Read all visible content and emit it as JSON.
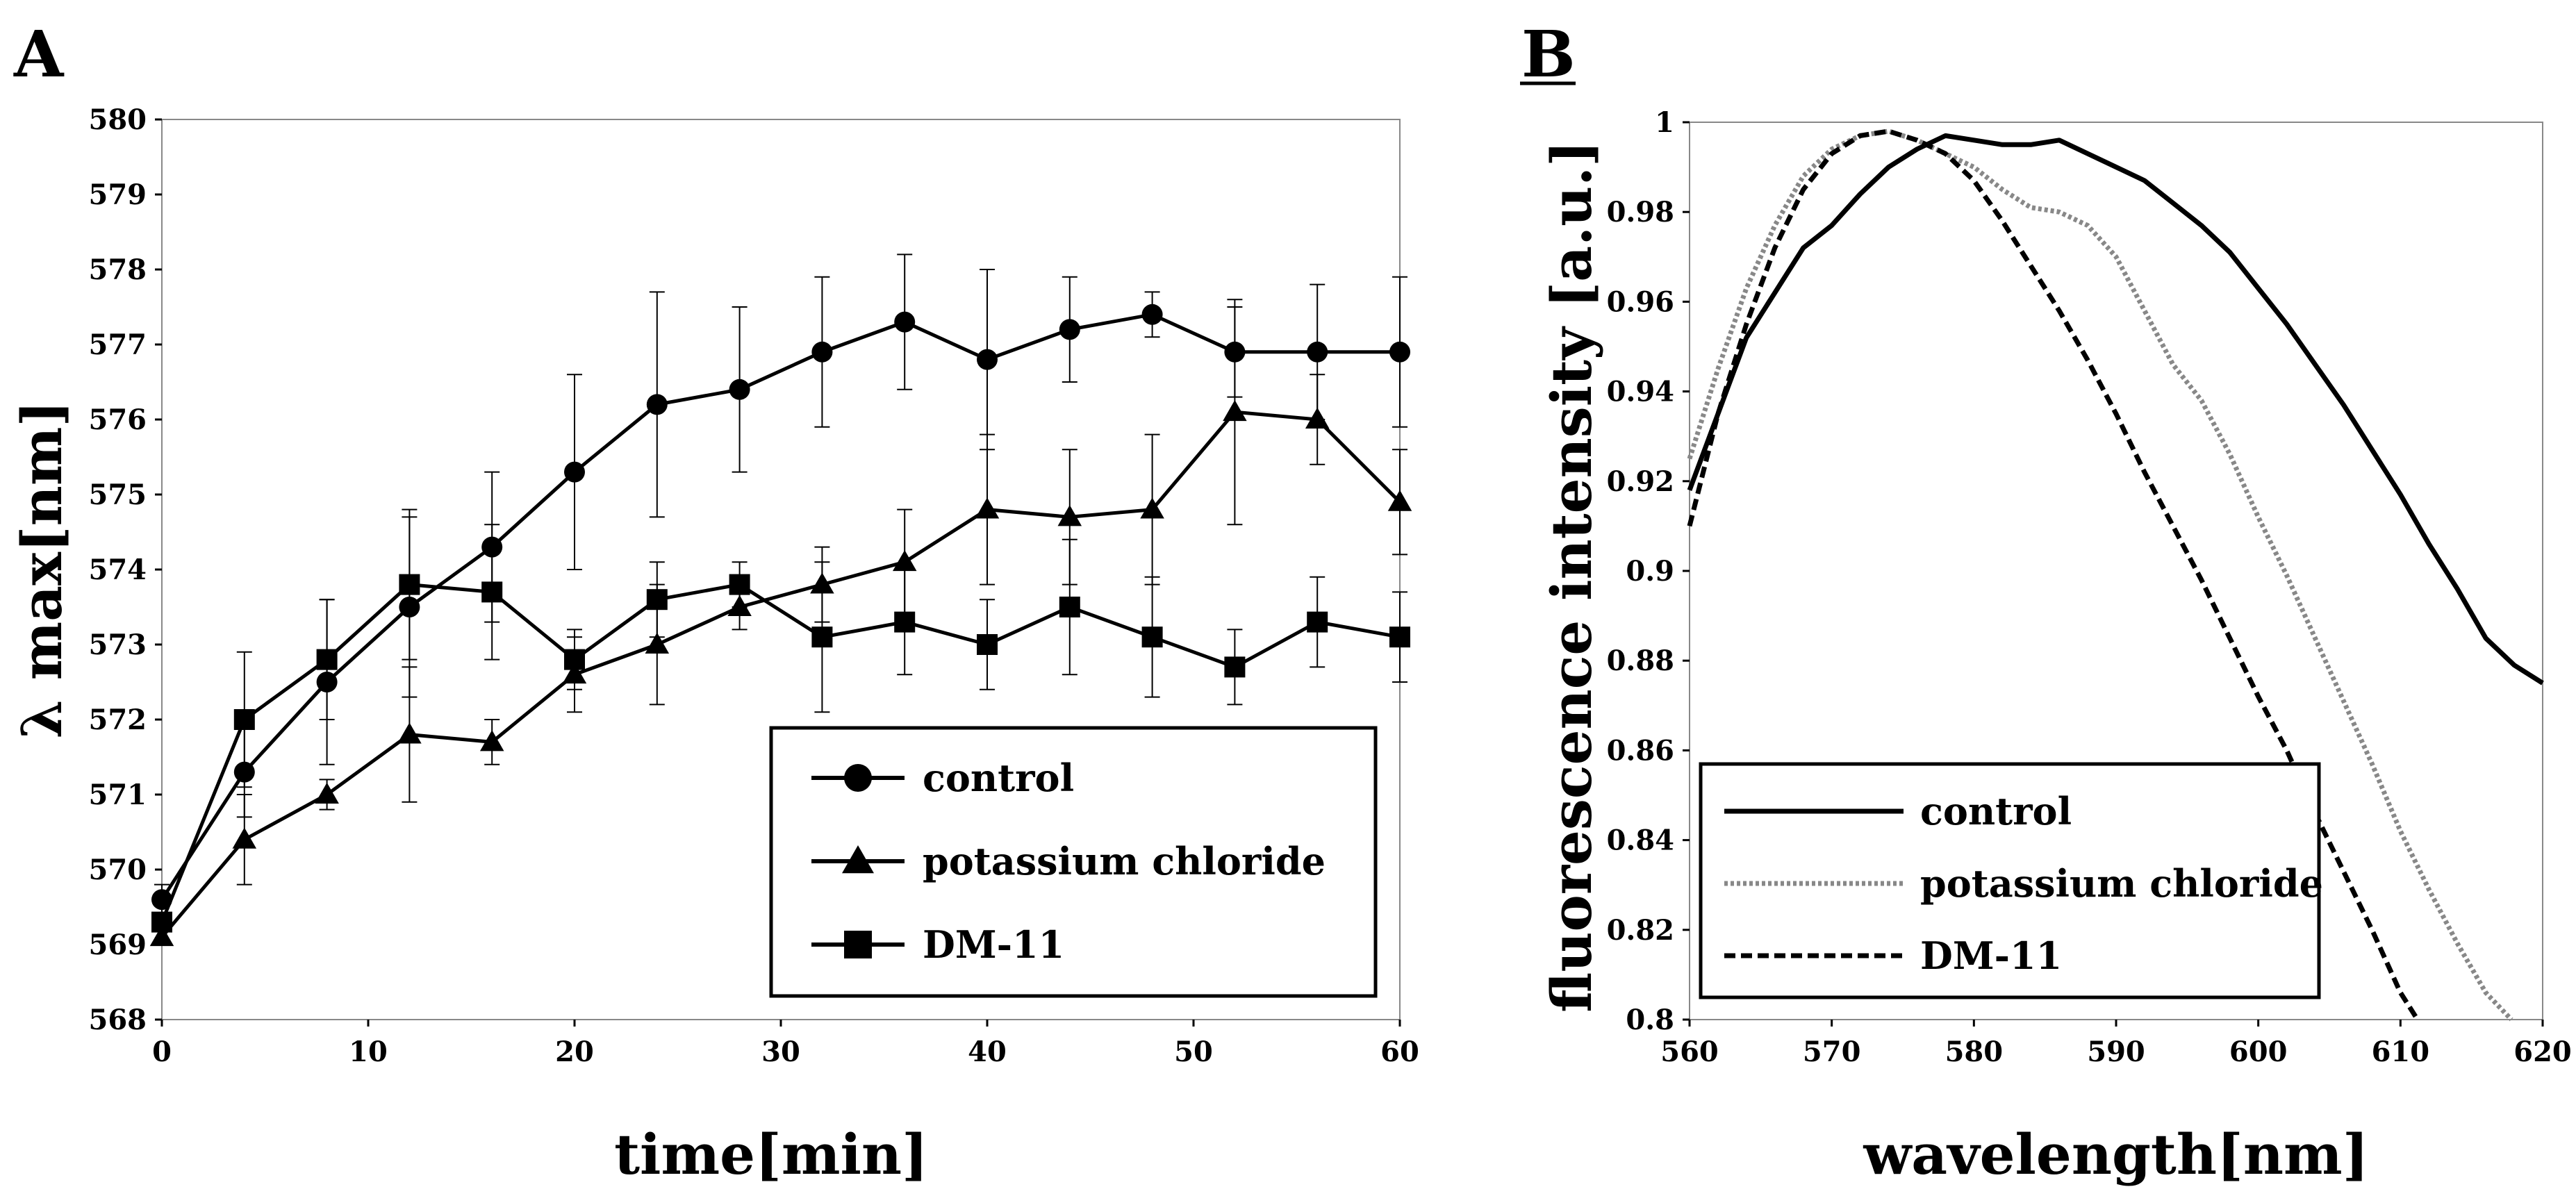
{
  "chart_data": [
    {
      "panel": "A",
      "type": "line",
      "xlabel": "time[min]",
      "ylabel": "λ max[nm]",
      "xlim": [
        0,
        60
      ],
      "ylim": [
        568,
        580
      ],
      "xticks": [
        0,
        10,
        20,
        30,
        40,
        50,
        60
      ],
      "yticks": [
        568,
        569,
        570,
        571,
        572,
        573,
        574,
        575,
        576,
        577,
        578,
        579,
        580
      ],
      "error_bars": true,
      "legend_position": "bottom-right",
      "x": [
        0,
        4,
        8,
        12,
        16,
        20,
        24,
        28,
        32,
        36,
        40,
        44,
        48,
        52,
        56,
        60
      ],
      "series": [
        {
          "name": "control",
          "marker": "circle",
          "values": [
            569.6,
            571.3,
            572.5,
            573.5,
            574.3,
            575.3,
            576.2,
            576.4,
            576.9,
            577.3,
            576.8,
            577.2,
            577.4,
            576.9,
            576.9,
            576.9
          ],
          "errors": [
            0.2,
            0.6,
            1.1,
            1.2,
            1.0,
            1.3,
            1.5,
            1.1,
            1.0,
            0.9,
            1.2,
            0.7,
            0.3,
            0.6,
            0.9,
            1.0
          ]
        },
        {
          "name": "potassium chloride",
          "marker": "triangle",
          "values": [
            569.1,
            570.4,
            571.0,
            571.8,
            571.7,
            572.6,
            573.0,
            573.5,
            573.8,
            574.1,
            574.8,
            574.7,
            574.8,
            576.1,
            576.0,
            574.9
          ],
          "errors": [
            0.1,
            0.6,
            0.2,
            0.9,
            0.3,
            0.5,
            0.8,
            0.3,
            0.5,
            0.7,
            1.0,
            0.9,
            1.0,
            1.5,
            0.6,
            0.7
          ]
        },
        {
          "name": "DM-11",
          "marker": "square",
          "values": [
            569.3,
            572.0,
            572.8,
            573.8,
            573.7,
            572.8,
            573.6,
            573.8,
            573.1,
            573.3,
            573.0,
            573.5,
            573.1,
            572.7,
            573.3,
            573.1
          ],
          "errors": [
            0.1,
            0.9,
            0.8,
            1.0,
            0.9,
            0.4,
            0.5,
            0.3,
            1.0,
            0.7,
            0.6,
            0.9,
            0.8,
            0.5,
            0.6,
            0.6
          ]
        }
      ]
    },
    {
      "panel": "B",
      "type": "line",
      "xlabel": "wavelength[nm]",
      "ylabel": "fluorescence intensity [a.u.]",
      "xlim": [
        560,
        620
      ],
      "ylim": [
        0.8,
        1
      ],
      "xticks": [
        560,
        570,
        580,
        590,
        600,
        610,
        620
      ],
      "yticks": [
        0.8,
        0.82,
        0.84,
        0.86,
        0.88,
        0.9,
        0.92,
        0.94,
        0.96,
        0.98,
        1
      ],
      "legend_position": "bottom-left",
      "series": [
        {
          "name": "control",
          "style": "solid",
          "x": [
            560,
            562,
            564,
            566,
            568,
            570,
            572,
            574,
            576,
            578,
            580,
            582,
            584,
            586,
            588,
            590,
            592,
            594,
            596,
            598,
            600,
            602,
            604,
            606,
            608,
            610,
            612,
            614,
            616,
            618,
            620
          ],
          "values": [
            0.918,
            0.935,
            0.952,
            0.962,
            0.972,
            0.977,
            0.984,
            0.99,
            0.994,
            0.997,
            0.996,
            0.995,
            0.995,
            0.996,
            0.993,
            0.99,
            0.987,
            0.982,
            0.977,
            0.971,
            0.963,
            0.955,
            0.946,
            0.937,
            0.927,
            0.917,
            0.906,
            0.896,
            0.885,
            0.879,
            0.875
          ]
        },
        {
          "name": "potassium chloride",
          "style": "dotted",
          "x": [
            560,
            562,
            564,
            566,
            568,
            570,
            572,
            574,
            576,
            578,
            580,
            582,
            584,
            586,
            588,
            590,
            592,
            594,
            596,
            598,
            600,
            602,
            604,
            606,
            608,
            610,
            612,
            614,
            616,
            617.8
          ],
          "values": [
            0.925,
            0.945,
            0.963,
            0.977,
            0.988,
            0.994,
            0.997,
            0.998,
            0.996,
            0.993,
            0.99,
            0.985,
            0.981,
            0.98,
            0.977,
            0.97,
            0.958,
            0.946,
            0.938,
            0.926,
            0.912,
            0.899,
            0.885,
            0.871,
            0.857,
            0.842,
            0.829,
            0.817,
            0.806,
            0.8
          ]
        },
        {
          "name": "DM-11",
          "style": "dashed",
          "x": [
            560,
            562,
            564,
            566,
            568,
            570,
            572,
            574,
            576,
            578,
            580,
            582,
            584,
            586,
            588,
            590,
            592,
            594,
            596,
            598,
            600,
            602,
            604,
            606,
            608,
            610,
            611.2
          ],
          "values": [
            0.91,
            0.935,
            0.955,
            0.972,
            0.985,
            0.993,
            0.997,
            0.998,
            0.996,
            0.993,
            0.987,
            0.978,
            0.968,
            0.958,
            0.947,
            0.935,
            0.922,
            0.91,
            0.898,
            0.885,
            0.872,
            0.86,
            0.846,
            0.833,
            0.82,
            0.806,
            0.8
          ]
        }
      ]
    }
  ]
}
